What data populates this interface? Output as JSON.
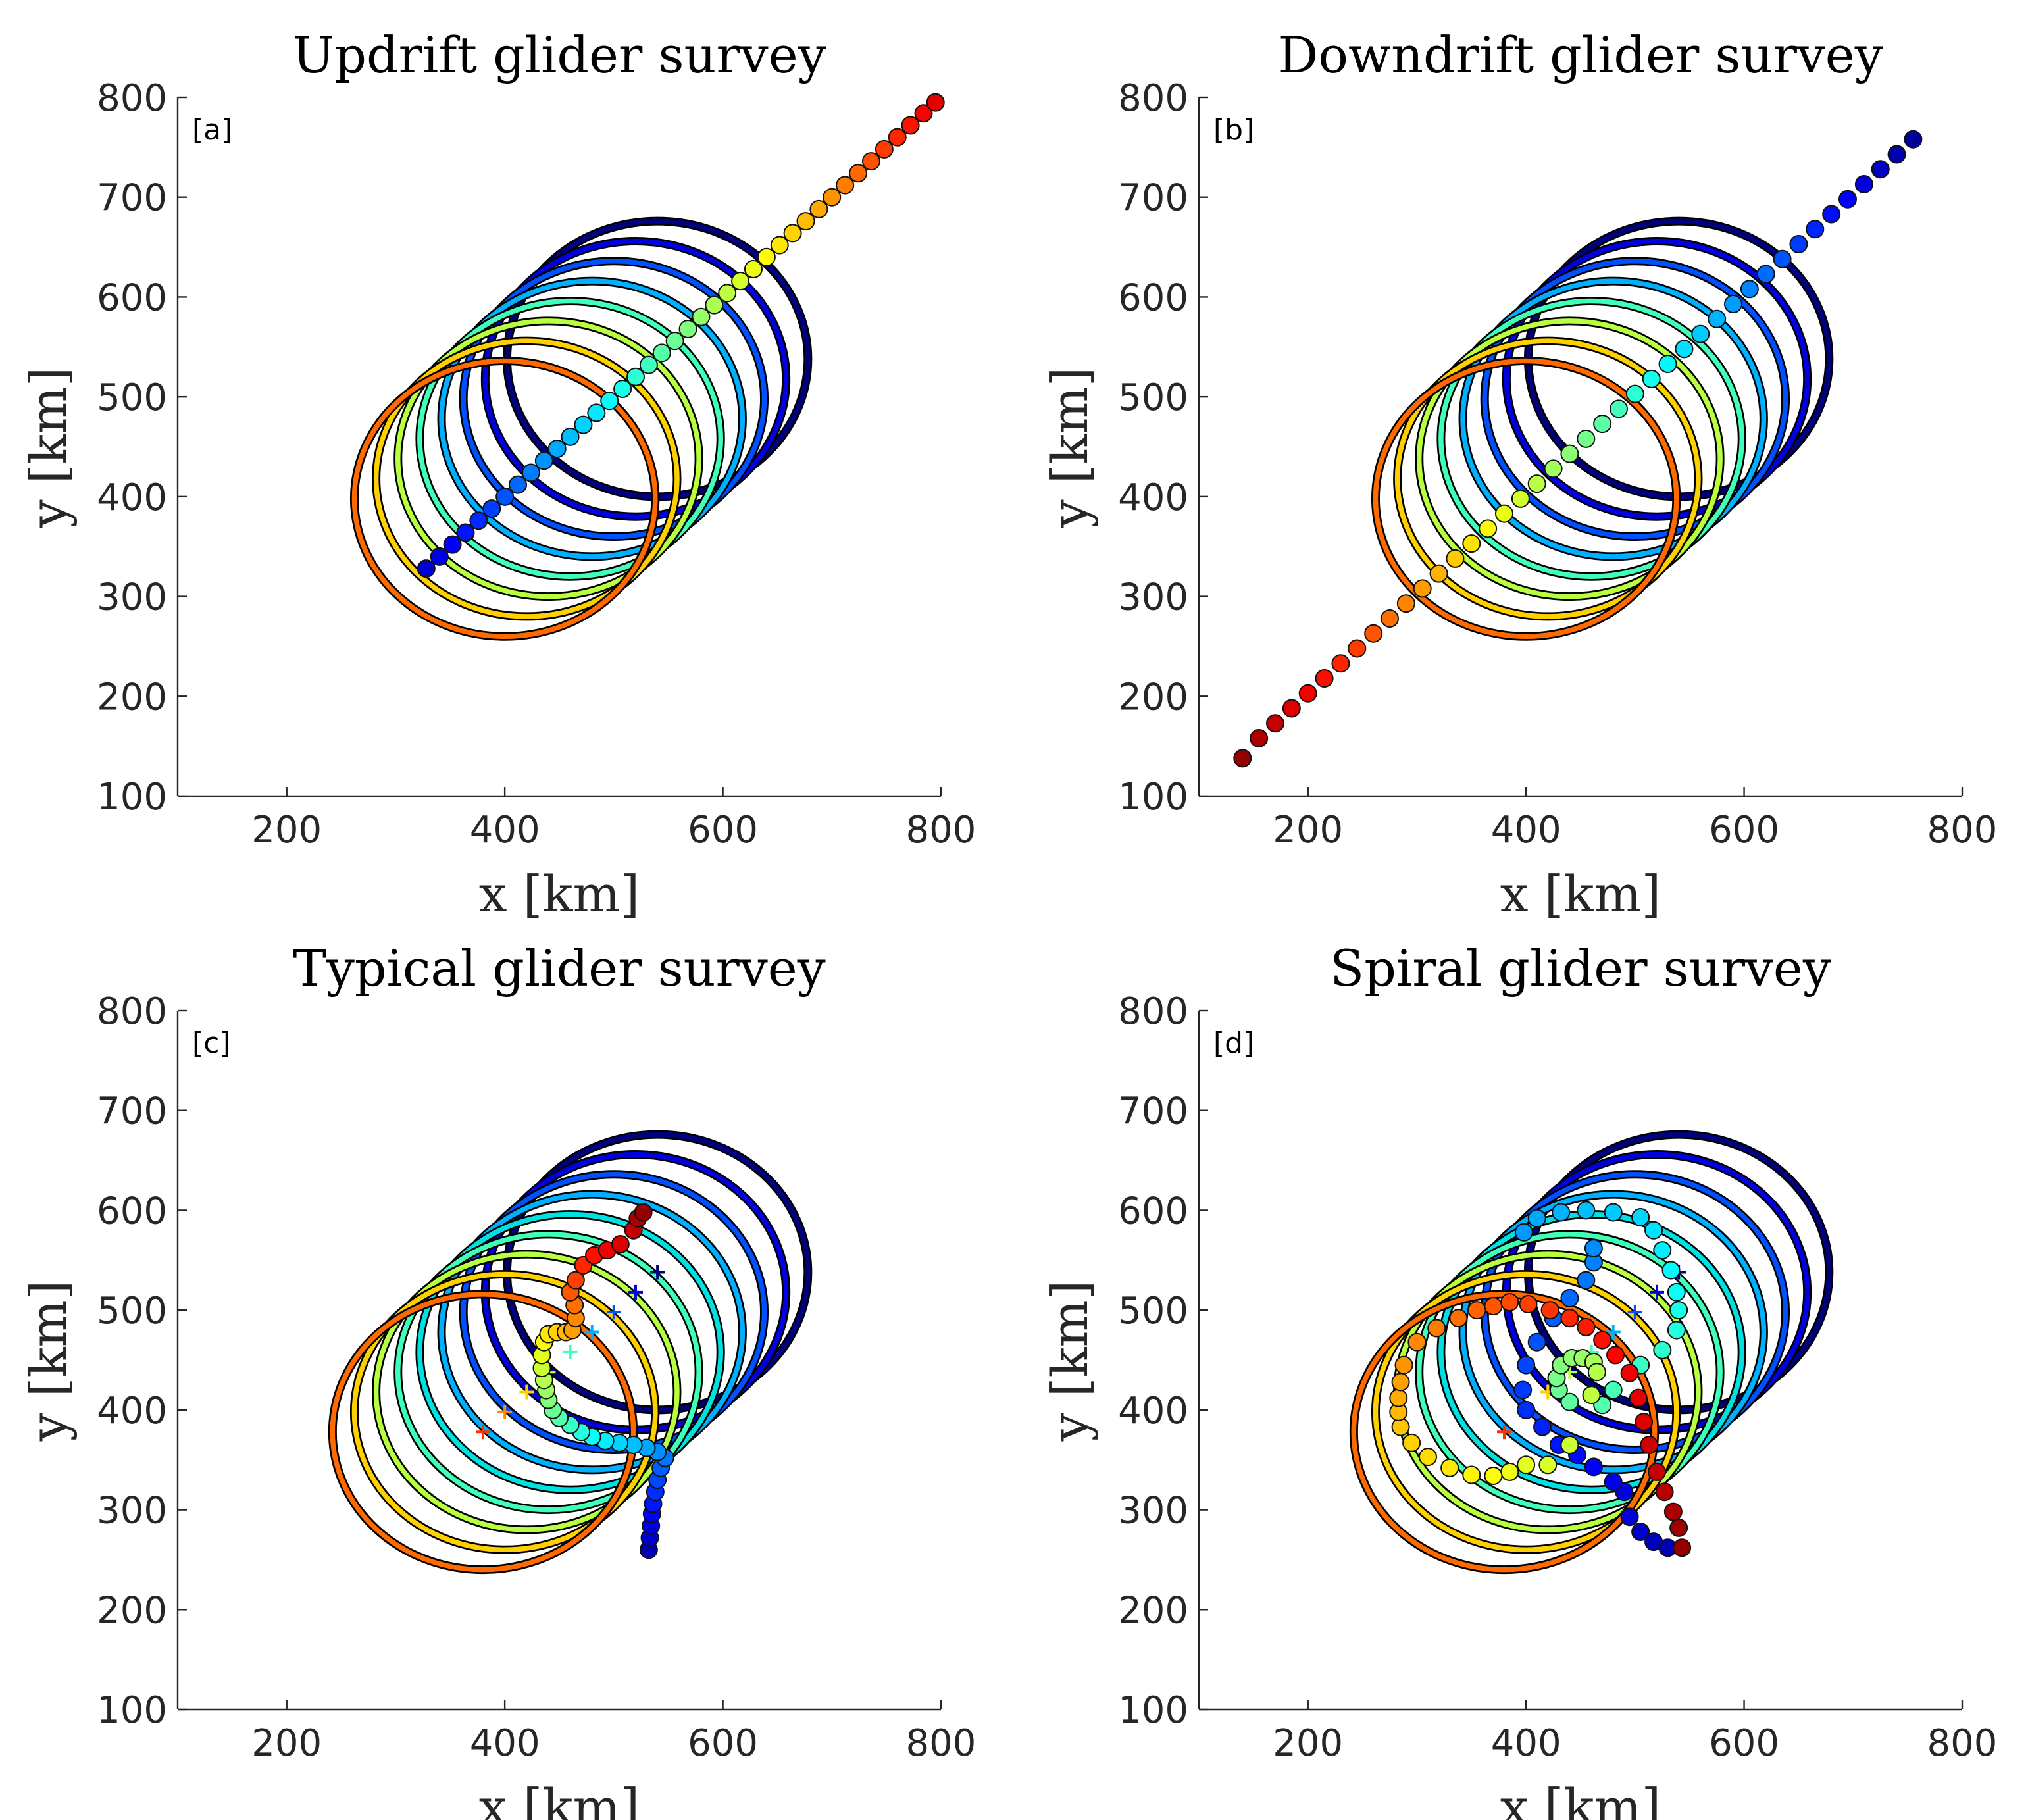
{
  "chart_data": [
    {
      "type": "scatter",
      "panel": "[a]",
      "title": "Updrift glider survey",
      "xlabel": "x [km]",
      "ylabel": "y [km]",
      "xlim": [
        100,
        800
      ],
      "ylim": [
        100,
        800
      ],
      "xticks": [
        200,
        400,
        600,
        800
      ],
      "yticks": [
        100,
        200,
        300,
        400,
        500,
        600,
        700,
        800
      ],
      "grid": false,
      "circle_radius_km": 138,
      "eddy_centers": [
        [
          540,
          538
        ],
        [
          520,
          518
        ],
        [
          500,
          498
        ],
        [
          480,
          478
        ],
        [
          460,
          458
        ],
        [
          440,
          438
        ],
        [
          420,
          418
        ],
        [
          400,
          398
        ]
      ],
      "eddy_colors": [
        "#00007f",
        "#0000e0",
        "#0050ff",
        "#00b0ff",
        "#40ffb8",
        "#b8ff40",
        "#ffd000",
        "#ff6a00"
      ],
      "track": {
        "points": [
          [
            328,
            328
          ],
          [
            340,
            340
          ],
          [
            352,
            352
          ],
          [
            364,
            364
          ],
          [
            376,
            376
          ],
          [
            388,
            388
          ],
          [
            400,
            400
          ],
          [
            412,
            412
          ],
          [
            424,
            424
          ],
          [
            436,
            436
          ],
          [
            448,
            448
          ],
          [
            460,
            460
          ],
          [
            472,
            472
          ],
          [
            484,
            484
          ],
          [
            496,
            496
          ],
          [
            508,
            508
          ],
          [
            520,
            520
          ],
          [
            532,
            532
          ],
          [
            544,
            544
          ],
          [
            556,
            556
          ],
          [
            568,
            568
          ],
          [
            580,
            580
          ],
          [
            592,
            592
          ],
          [
            604,
            604
          ],
          [
            616,
            616
          ],
          [
            628,
            628
          ],
          [
            640,
            640
          ],
          [
            652,
            652
          ],
          [
            664,
            664
          ],
          [
            676,
            676
          ],
          [
            688,
            688
          ],
          [
            700,
            700
          ],
          [
            712,
            712
          ],
          [
            724,
            724
          ],
          [
            736,
            736
          ],
          [
            748,
            748
          ],
          [
            760,
            760
          ],
          [
            772,
            772
          ],
          [
            784,
            784
          ],
          [
            795,
            795
          ]
        ],
        "color_start": 0.08,
        "color_end": 0.9
      },
      "markers": []
    },
    {
      "type": "scatter",
      "panel": "[b]",
      "title": "Downdrift glider survey",
      "xlabel": "x [km]",
      "ylabel": "y [km]",
      "xlim": [
        100,
        800
      ],
      "ylim": [
        100,
        800
      ],
      "xticks": [
        200,
        400,
        600,
        800
      ],
      "yticks": [
        100,
        200,
        300,
        400,
        500,
        600,
        700,
        800
      ],
      "grid": false,
      "circle_radius_km": 138,
      "eddy_centers": [
        [
          540,
          538
        ],
        [
          520,
          518
        ],
        [
          500,
          498
        ],
        [
          480,
          478
        ],
        [
          460,
          458
        ],
        [
          440,
          438
        ],
        [
          420,
          418
        ],
        [
          400,
          398
        ]
      ],
      "eddy_colors": [
        "#00007f",
        "#0000e0",
        "#0050ff",
        "#00b0ff",
        "#40ffb8",
        "#b8ff40",
        "#ffd000",
        "#ff6a00"
      ],
      "track": {
        "points": [
          [
            755,
            758
          ],
          [
            740,
            743
          ],
          [
            725,
            728
          ],
          [
            710,
            713
          ],
          [
            695,
            698
          ],
          [
            680,
            683
          ],
          [
            665,
            668
          ],
          [
            650,
            653
          ],
          [
            635,
            638
          ],
          [
            620,
            623
          ],
          [
            605,
            608
          ],
          [
            590,
            593
          ],
          [
            575,
            578
          ],
          [
            560,
            563
          ],
          [
            545,
            548
          ],
          [
            530,
            533
          ],
          [
            515,
            518
          ],
          [
            500,
            503
          ],
          [
            485,
            488
          ],
          [
            470,
            473
          ],
          [
            455,
            458
          ],
          [
            440,
            443
          ],
          [
            425,
            428
          ],
          [
            410,
            413
          ],
          [
            395,
            398
          ],
          [
            380,
            383
          ],
          [
            365,
            368
          ],
          [
            350,
            353
          ],
          [
            335,
            338
          ],
          [
            320,
            323
          ],
          [
            305,
            308
          ],
          [
            290,
            293
          ],
          [
            275,
            278
          ],
          [
            260,
            263
          ],
          [
            245,
            248
          ],
          [
            230,
            233
          ],
          [
            215,
            218
          ],
          [
            200,
            203
          ],
          [
            185,
            188
          ],
          [
            170,
            173
          ],
          [
            155,
            158
          ],
          [
            140,
            138
          ]
        ],
        "color_start": 0.02,
        "color_end": 0.98
      },
      "markers": []
    },
    {
      "type": "scatter",
      "panel": "[c]",
      "title": "Typical glider survey",
      "xlabel": "x [km]",
      "ylabel": "y [km]",
      "xlim": [
        100,
        800
      ],
      "ylim": [
        100,
        800
      ],
      "xticks": [
        200,
        400,
        600,
        800
      ],
      "yticks": [
        100,
        200,
        300,
        400,
        500,
        600,
        700,
        800
      ],
      "grid": false,
      "circle_radius_km": 138,
      "eddy_centers": [
        [
          540,
          538
        ],
        [
          520,
          518
        ],
        [
          500,
          498
        ],
        [
          480,
          478
        ],
        [
          460,
          458
        ],
        [
          440,
          438
        ],
        [
          420,
          418
        ],
        [
          400,
          398
        ],
        [
          380,
          378
        ]
      ],
      "eddy_colors": [
        "#00007f",
        "#0000e0",
        "#0050ff",
        "#00b0ff",
        "#00e0e0",
        "#40ffb8",
        "#b8ff40",
        "#ffd000",
        "#ff6a00"
      ],
      "track": {
        "points": [
          [
            532,
            260
          ],
          [
            533,
            272
          ],
          [
            534,
            284
          ],
          [
            535,
            296
          ],
          [
            536,
            306
          ],
          [
            538,
            318
          ],
          [
            540,
            330
          ],
          [
            543,
            342
          ],
          [
            547,
            352
          ],
          [
            540,
            358
          ],
          [
            530,
            362
          ],
          [
            518,
            365
          ],
          [
            505,
            367
          ],
          [
            492,
            369
          ],
          [
            480,
            373
          ],
          [
            470,
            378
          ],
          [
            460,
            385
          ],
          [
            450,
            392
          ],
          [
            444,
            400
          ],
          [
            440,
            410
          ],
          [
            438,
            420
          ],
          [
            436,
            430
          ],
          [
            434,
            442
          ],
          [
            434,
            455
          ],
          [
            436,
            468
          ],
          [
            440,
            476
          ],
          [
            448,
            478
          ],
          [
            456,
            478
          ],
          [
            462,
            480
          ],
          [
            465,
            492
          ],
          [
            464,
            505
          ],
          [
            460,
            518
          ],
          [
            465,
            530
          ],
          [
            472,
            545
          ],
          [
            482,
            555
          ],
          [
            494,
            560
          ],
          [
            506,
            566
          ],
          [
            518,
            580
          ],
          [
            522,
            592
          ],
          [
            527,
            598
          ]
        ],
        "color_start": 0.05,
        "color_end": 0.98
      },
      "markers": [
        [
          540,
          538,
          "#00007f"
        ],
        [
          520,
          518,
          "#0000e0"
        ],
        [
          500,
          498,
          "#0050ff"
        ],
        [
          480,
          478,
          "#00b0ff"
        ],
        [
          460,
          458,
          "#40ffb8"
        ],
        [
          440,
          438,
          "#b8ff40"
        ],
        [
          420,
          418,
          "#ffd000"
        ],
        [
          400,
          398,
          "#ff8c00"
        ],
        [
          380,
          378,
          "#ff3000"
        ]
      ]
    },
    {
      "type": "scatter",
      "panel": "[d]",
      "title": "Spiral glider survey",
      "xlabel": "x [km]",
      "ylabel": "y [km]",
      "xlim": [
        100,
        800
      ],
      "ylim": [
        100,
        800
      ],
      "xticks": [
        200,
        400,
        600,
        800
      ],
      "yticks": [
        100,
        200,
        300,
        400,
        500,
        600,
        700,
        800
      ],
      "grid": false,
      "circle_radius_km": 138,
      "eddy_centers": [
        [
          540,
          538
        ],
        [
          520,
          518
        ],
        [
          500,
          498
        ],
        [
          480,
          478
        ],
        [
          460,
          458
        ],
        [
          440,
          438
        ],
        [
          420,
          418
        ],
        [
          400,
          398
        ],
        [
          380,
          378
        ]
      ],
      "eddy_colors": [
        "#00007f",
        "#0000e0",
        "#0050ff",
        "#00b0ff",
        "#00e0e0",
        "#40ffb8",
        "#b8ff40",
        "#ffd000",
        "#ff6a00"
      ],
      "track": {
        "points": [
          [
            530,
            262
          ],
          [
            517,
            268
          ],
          [
            505,
            278
          ],
          [
            495,
            293
          ],
          [
            490,
            318
          ],
          [
            480,
            328
          ],
          [
            462,
            343
          ],
          [
            447,
            355
          ],
          [
            430,
            365
          ],
          [
            415,
            383
          ],
          [
            400,
            400
          ],
          [
            397,
            420
          ],
          [
            400,
            445
          ],
          [
            410,
            468
          ],
          [
            425,
            492
          ],
          [
            440,
            512
          ],
          [
            455,
            530
          ],
          [
            462,
            548
          ],
          [
            462,
            562
          ],
          [
            398,
            578
          ],
          [
            410,
            592
          ],
          [
            432,
            598
          ],
          [
            455,
            600
          ],
          [
            480,
            598
          ],
          [
            505,
            593
          ],
          [
            517,
            580
          ],
          [
            525,
            560
          ],
          [
            533,
            540
          ],
          [
            538,
            518
          ],
          [
            540,
            500
          ],
          [
            538,
            480
          ],
          [
            525,
            460
          ],
          [
            505,
            445
          ],
          [
            480,
            420
          ],
          [
            470,
            405
          ],
          [
            440,
            408
          ],
          [
            430,
            420
          ],
          [
            428,
            432
          ],
          [
            432,
            445
          ],
          [
            442,
            452
          ],
          [
            452,
            452
          ],
          [
            462,
            448
          ],
          [
            465,
            438
          ],
          [
            460,
            415
          ],
          [
            440,
            365
          ],
          [
            420,
            345
          ],
          [
            400,
            345
          ],
          [
            385,
            338
          ],
          [
            370,
            334
          ],
          [
            350,
            335
          ],
          [
            330,
            342
          ],
          [
            310,
            353
          ],
          [
            295,
            367
          ],
          [
            285,
            383
          ],
          [
            283,
            398
          ],
          [
            283,
            412
          ],
          [
            285,
            428
          ],
          [
            288,
            445
          ],
          [
            300,
            468
          ],
          [
            318,
            482
          ],
          [
            338,
            492
          ],
          [
            355,
            500
          ],
          [
            370,
            504
          ],
          [
            385,
            508
          ],
          [
            402,
            506
          ],
          [
            422,
            500
          ],
          [
            440,
            492
          ],
          [
            455,
            483
          ],
          [
            470,
            470
          ],
          [
            482,
            455
          ],
          [
            495,
            437
          ],
          [
            503,
            412
          ],
          [
            508,
            388
          ],
          [
            513,
            365
          ],
          [
            520,
            338
          ],
          [
            527,
            318
          ],
          [
            535,
            298
          ],
          [
            540,
            282
          ],
          [
            543,
            262
          ]
        ],
        "color_start": 0.05,
        "color_end": 0.98
      },
      "markers": [
        [
          540,
          538,
          "#00007f"
        ],
        [
          520,
          518,
          "#0000e0"
        ],
        [
          500,
          498,
          "#0050ff"
        ],
        [
          480,
          478,
          "#00b0ff"
        ],
        [
          460,
          458,
          "#40ffb8"
        ],
        [
          440,
          438,
          "#b8ff40"
        ],
        [
          420,
          418,
          "#ffd000"
        ],
        [
          400,
          398,
          "#ff8c00"
        ],
        [
          380,
          378,
          "#ff3000"
        ]
      ]
    }
  ]
}
